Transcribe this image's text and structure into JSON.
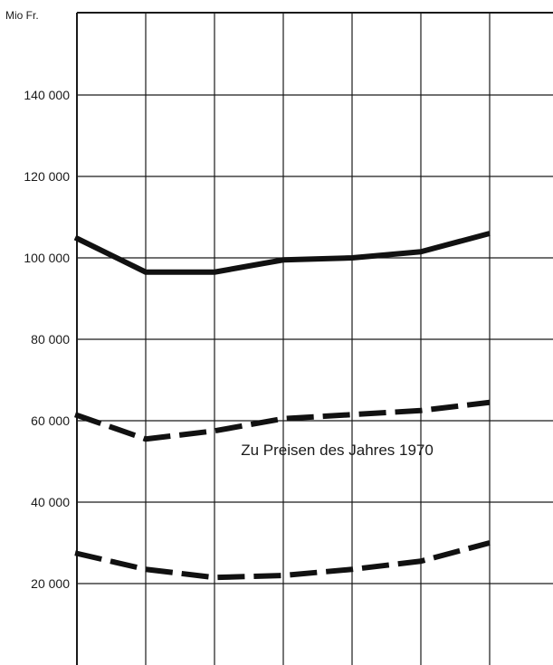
{
  "chart_data": {
    "type": "line",
    "title": "",
    "xlabel": "",
    "ylabel": "Mio Fr.",
    "ylim": [
      0,
      160000
    ],
    "y_ticks": [
      20000,
      40000,
      60000,
      80000,
      100000,
      120000,
      140000
    ],
    "y_tick_labels": [
      "20 000",
      "40 000",
      "60 000",
      "80 000",
      "100 000",
      "120 000",
      "140 000"
    ],
    "x": [
      1,
      2,
      3,
      4,
      5,
      6,
      7
    ],
    "xlim": [
      1,
      7.6
    ],
    "grid": true,
    "series": [
      {
        "style": "solid",
        "values": [
          105000,
          96500,
          96500,
          99500,
          100000,
          101500,
          106000
        ]
      },
      {
        "style": "dashed",
        "values": [
          61500,
          55500,
          57500,
          60500,
          61500,
          62500,
          64500
        ]
      },
      {
        "style": "dashed",
        "values": [
          27500,
          23500,
          21500,
          22000,
          23500,
          25500,
          30000
        ]
      }
    ],
    "annotations": [
      {
        "text": "Zu Preisen des Jahres 1970",
        "x": 4.2,
        "y": 52500
      }
    ]
  }
}
